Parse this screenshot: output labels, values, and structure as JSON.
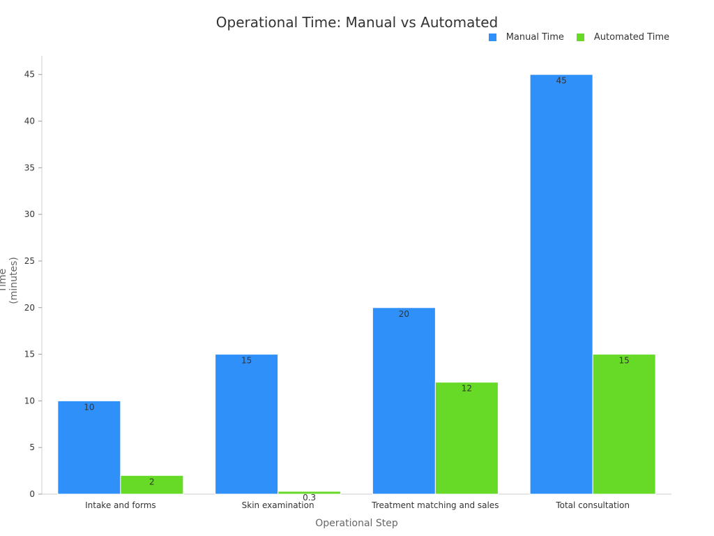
{
  "chart_data": {
    "type": "bar",
    "title": "Operational Time: Manual vs Automated",
    "xlabel": "Operational Step",
    "ylabel": "Time (minutes)",
    "categories": [
      "Intake and forms",
      "Skin examination",
      "Treatment matching and sales",
      "Total consultation"
    ],
    "series": [
      {
        "name": "Manual Time",
        "values": [
          10,
          15,
          20,
          45
        ],
        "color": "#2E90F8"
      },
      {
        "name": "Automated Time",
        "values": [
          2,
          0.3,
          12,
          15
        ],
        "color": "#66DA26"
      }
    ],
    "data_labels": [
      [
        "10",
        "15",
        "20",
        "45"
      ],
      [
        "2",
        "0.3",
        "12",
        "15"
      ]
    ],
    "ylim": [
      0,
      47
    ],
    "yticks": [
      0,
      5,
      10,
      15,
      20,
      25,
      30,
      35,
      40,
      45
    ],
    "grid": false,
    "legend_position": "top-right"
  }
}
